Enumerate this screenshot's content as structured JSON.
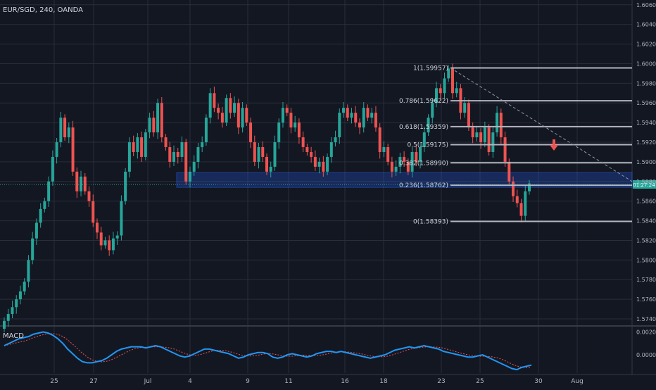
{
  "header": {
    "symbol": "EUR/SGD, 240, OANDA"
  },
  "macd": {
    "label": "MACD",
    "ticks": [
      "0.0020",
      "0.0000"
    ]
  },
  "current_price_label": "01:27:24",
  "colors": {
    "background": "#131722",
    "up": "#26a69a",
    "down": "#ef5350",
    "grid": "#2a2e39",
    "fib": "#b2b5be",
    "zone": "#2962ff",
    "macd_line": "#2196f3",
    "signal": "#ef5350"
  },
  "chart_data": [
    {
      "type": "candlestick",
      "instrument": "EUR/SGD",
      "interval": "240",
      "ylim": [
        1.5735,
        1.6062
      ],
      "y_ticks": [
        "1.60600",
        "1.60400",
        "1.60200",
        "1.60000",
        "1.59800",
        "1.59600",
        "1.59400",
        "1.59200",
        "1.59000",
        "1.58800",
        "1.58600",
        "1.58400",
        "1.58200",
        "1.58000",
        "1.57800",
        "1.57600",
        "1.57400"
      ],
      "x_ticks": [
        "25",
        "27",
        "Jul",
        "4",
        "9",
        "11",
        "16",
        "18",
        "23",
        "25",
        "30",
        "Aug"
      ],
      "fib_levels": [
        {
          "label": "1(1.59957)",
          "ratio": 1,
          "price": 1.59957
        },
        {
          "label": "0.786(1.59622)",
          "ratio": 0.786,
          "price": 1.59622
        },
        {
          "label": "0.618(1.59359)",
          "ratio": 0.618,
          "price": 1.59359
        },
        {
          "label": "0.5(1.59175)",
          "ratio": 0.5,
          "price": 1.59175
        },
        {
          "label": "0.382(1.58990)",
          "ratio": 0.382,
          "price": 1.5899
        },
        {
          "label": "0.236(1.58762)",
          "ratio": 0.236,
          "price": 1.58762
        },
        {
          "label": "0(1.58393)",
          "ratio": 0,
          "price": 1.58393
        }
      ],
      "support_zone": [
        1.5874,
        1.5889
      ],
      "current_price": 1.5877,
      "annotation": "down-arrow",
      "closes": [
        1.5738,
        1.5745,
        1.5752,
        1.576,
        1.5768,
        1.5778,
        1.58,
        1.5822,
        1.5838,
        1.5852,
        1.586,
        1.588,
        1.5905,
        1.592,
        1.5945,
        1.5925,
        1.5935,
        1.589,
        1.587,
        1.5885,
        1.587,
        1.586,
        1.5838,
        1.5828,
        1.5815,
        1.582,
        1.581,
        1.5822,
        1.5825,
        1.586,
        1.589,
        1.592,
        1.591,
        1.5925,
        1.5905,
        1.593,
        1.5945,
        1.593,
        1.596,
        1.5925,
        1.5915,
        1.59,
        1.591,
        1.5905,
        1.592,
        1.588,
        1.589,
        1.59,
        1.5915,
        1.592,
        1.5945,
        1.597,
        1.5955,
        1.595,
        1.594,
        1.5965,
        1.595,
        1.596,
        1.5935,
        1.5955,
        1.594,
        1.592,
        1.59,
        1.5915,
        1.5905,
        1.589,
        1.5895,
        1.592,
        1.594,
        1.5955,
        1.595,
        1.5935,
        1.594,
        1.5925,
        1.5915,
        1.591,
        1.5905,
        1.5895,
        1.59,
        1.589,
        1.5905,
        1.592,
        1.5925,
        1.595,
        1.5955,
        1.5945,
        1.595,
        1.594,
        1.5935,
        1.5955,
        1.5945,
        1.595,
        1.5935,
        1.591,
        1.5915,
        1.59,
        1.589,
        1.5895,
        1.5905,
        1.59,
        1.589,
        1.591,
        1.59,
        1.5915,
        1.593,
        1.5945,
        1.596,
        1.5975,
        1.597,
        1.5985,
        1.5995,
        1.597,
        1.5975,
        1.595,
        1.596,
        1.5935,
        1.5925,
        1.593,
        1.592,
        1.5935,
        1.591,
        1.593,
        1.595,
        1.5925,
        1.59,
        1.588,
        1.5865,
        1.5858,
        1.5845,
        1.587,
        1.5878
      ],
      "macd": [
        0.0008,
        0.001,
        0.0012,
        0.0014,
        0.0015,
        0.0016,
        0.0018,
        0.0019,
        0.002,
        0.0019,
        0.0017,
        0.0014,
        0.001,
        0.0005,
        0.0001,
        -0.0003,
        -0.0006,
        -0.0007,
        -0.0007,
        -0.0006,
        -0.0005,
        -0.0003,
        0.0,
        0.0003,
        0.0005,
        0.0006,
        0.0007,
        0.0007,
        0.0007,
        0.0006,
        0.0007,
        0.0008,
        0.0007,
        0.0005,
        0.0003,
        0.0001,
        -0.0001,
        -0.0002,
        -0.0001,
        0.0001,
        0.0003,
        0.0005,
        0.0005,
        0.0004,
        0.0003,
        0.0002,
        0.0001,
        -0.0001,
        -0.0003,
        -0.0002,
        0.0,
        0.0001,
        0.0002,
        0.0002,
        0.0001,
        -0.0002,
        -0.0003,
        -0.0002,
        0.0,
        0.0001,
        0.0,
        -0.0001,
        -0.0002,
        -0.0001,
        0.0001,
        0.0002,
        0.0003,
        0.0003,
        0.0002,
        0.0003,
        0.0002,
        0.0001,
        0.0,
        -0.0001,
        -0.0002,
        -0.0003,
        -0.0002,
        -0.0001,
        0.0,
        0.0002,
        0.0004,
        0.0005,
        0.0006,
        0.0007,
        0.0006,
        0.0007,
        0.0008,
        0.0007,
        0.0006,
        0.0005,
        0.0003,
        0.0002,
        0.0001,
        0.0,
        -0.0001,
        -0.0002,
        -0.0002,
        -0.0001,
        0.0,
        -0.0002,
        -0.0004,
        -0.0006,
        -0.0008,
        -0.001,
        -0.0012,
        -0.0013,
        -0.0011,
        -0.001,
        -0.0009
      ],
      "macd_ylim": [
        -0.0016,
        0.0024
      ]
    }
  ]
}
